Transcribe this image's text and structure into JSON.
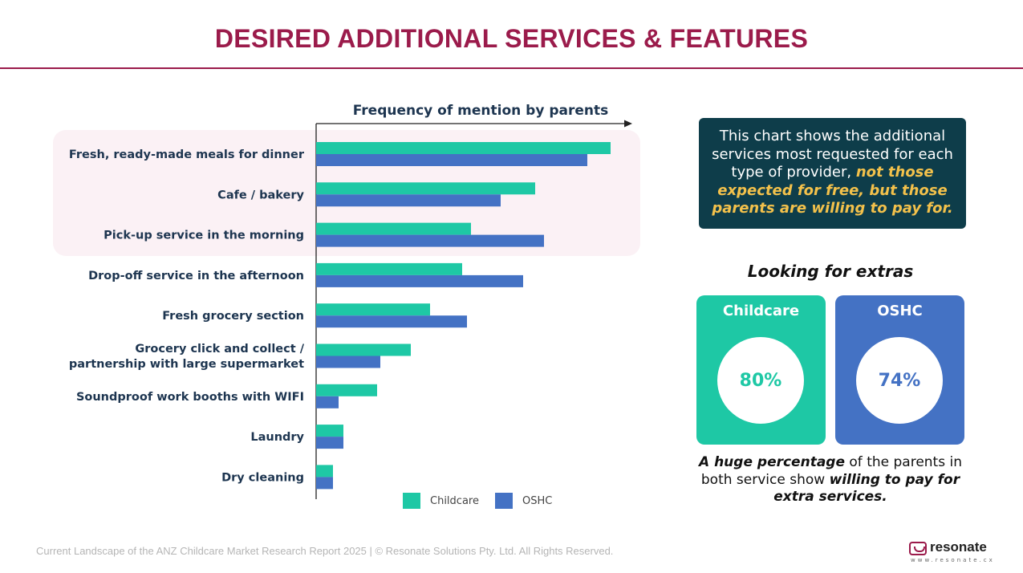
{
  "title": "DESIRED ADDITIONAL SERVICES & FEATURES",
  "chart_data": {
    "type": "bar",
    "orientation": "horizontal",
    "title": "Frequency of mention by parents",
    "categories": [
      [
        "Fresh, ready-made meals for dinner"
      ],
      [
        "Cafe / bakery"
      ],
      [
        "Pick-up service in the morning"
      ],
      [
        "Drop-off service in the afternoon"
      ],
      [
        "Fresh grocery section"
      ],
      [
        "Grocery click and collect /",
        "partnership with large supermarket"
      ],
      [
        "Soundproof work booths with WIFI"
      ],
      [
        "Laundry"
      ],
      [
        "Dry cleaning"
      ]
    ],
    "series": [
      {
        "name": "Childcare",
        "color": "#1ec8a5",
        "values": [
          367,
          273,
          193,
          182,
          142,
          118,
          76,
          34,
          21
        ]
      },
      {
        "name": "OSHC",
        "color": "#4472c4",
        "values": [
          338,
          230,
          284,
          258,
          188,
          80,
          28,
          34,
          21
        ]
      }
    ],
    "xlim": [
      0,
      390
    ],
    "axis_ticks": false,
    "grid": false,
    "legend": "bottom",
    "highlighted_categories": [
      0,
      1,
      2
    ]
  },
  "legend": {
    "childcare": "Childcare",
    "oshc": "OSHC"
  },
  "note": {
    "plain": "This chart shows the additional services most requested for each type of provider, ",
    "emphasis": "not those expected for free, but those parents are willing to pay for."
  },
  "extras": {
    "title": "Looking for extras",
    "childcare": {
      "label": "Childcare",
      "value": "80%"
    },
    "oshc": {
      "label": "OSHC",
      "value": "74%"
    }
  },
  "bottom_note": {
    "part1": "A huge percentage",
    "part2": " of the parents in both service show ",
    "part3": "willing to pay for extra services."
  },
  "footer": "Current Landscape of the ANZ Childcare Market Research Report 2025 | © Resonate Solutions Pty. Ltd. All Rights Reserved.",
  "logo": {
    "name": "resonate",
    "url": "www.resonate.cx"
  }
}
